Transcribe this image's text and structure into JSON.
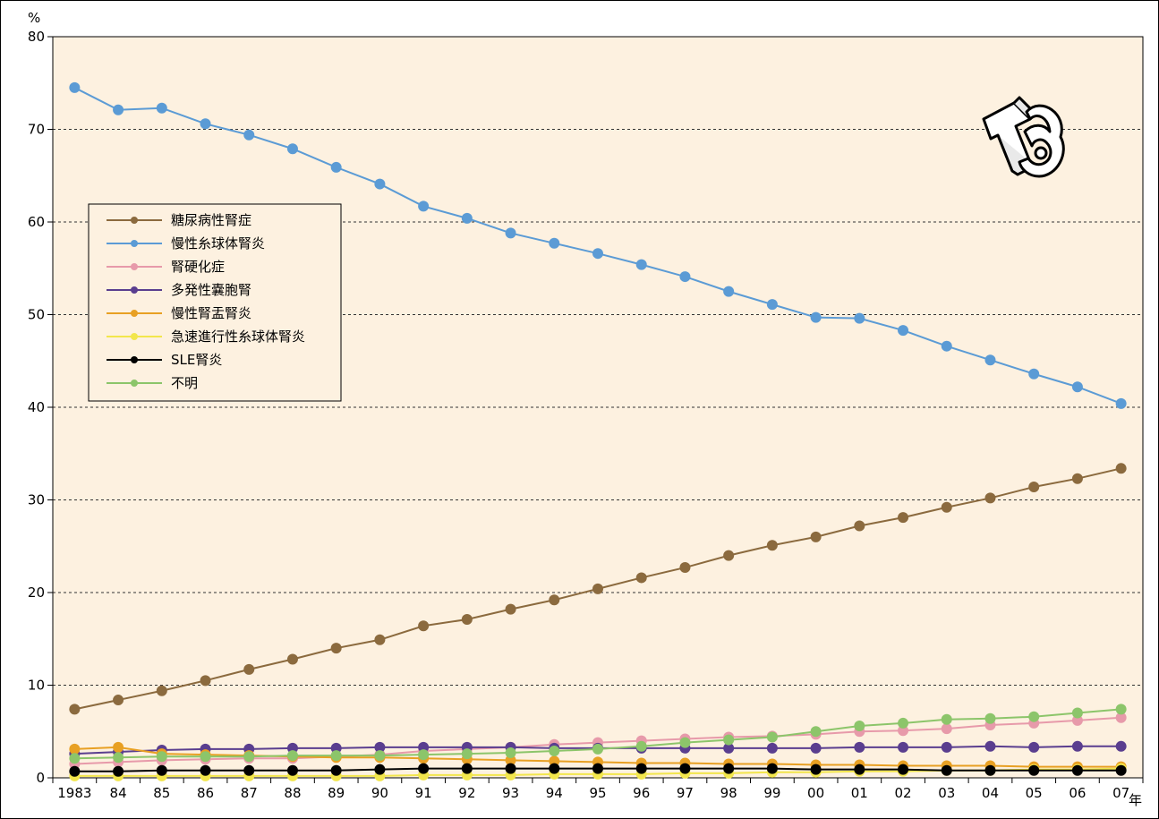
{
  "chart_data": {
    "type": "line",
    "y_unit": "%",
    "x_unit": "年",
    "categories": [
      "1983",
      "84",
      "85",
      "86",
      "87",
      "88",
      "89",
      "90",
      "91",
      "92",
      "93",
      "94",
      "95",
      "96",
      "97",
      "98",
      "99",
      "00",
      "01",
      "02",
      "03",
      "04",
      "05",
      "06",
      "07"
    ],
    "ylim": [
      0,
      80
    ],
    "yticks": [
      0,
      10,
      20,
      30,
      40,
      50,
      60,
      70,
      80
    ],
    "grid": "horizontal-dashed",
    "legend_position": "left",
    "series": [
      {
        "name": "糖尿病性腎症",
        "color": "#8B6A3E",
        "values": [
          7.4,
          8.4,
          9.4,
          10.5,
          11.7,
          12.8,
          14.0,
          14.9,
          16.4,
          17.1,
          18.2,
          19.2,
          20.4,
          21.6,
          22.7,
          24.0,
          25.1,
          26.0,
          27.2,
          28.1,
          29.2,
          30.2,
          31.4,
          32.3,
          33.4
        ]
      },
      {
        "name": "慢性糸球体腎炎",
        "color": "#5B9BD5",
        "values": [
          74.5,
          72.1,
          72.3,
          70.6,
          69.4,
          67.9,
          65.9,
          64.1,
          61.7,
          60.4,
          58.8,
          57.7,
          56.6,
          55.4,
          54.1,
          52.5,
          51.1,
          49.7,
          49.6,
          48.3,
          46.6,
          45.1,
          43.6,
          42.2,
          40.4
        ]
      },
      {
        "name": "腎硬化症",
        "color": "#E79AAA",
        "values": [
          1.5,
          1.7,
          1.9,
          2.0,
          2.1,
          2.1,
          2.3,
          2.5,
          2.9,
          3.1,
          3.3,
          3.6,
          3.8,
          4.0,
          4.2,
          4.4,
          4.5,
          4.7,
          5.0,
          5.1,
          5.3,
          5.7,
          5.9,
          6.2,
          6.5
        ]
      },
      {
        "name": "多発性嚢胞腎",
        "color": "#5A3E8F",
        "values": [
          2.6,
          2.8,
          3.0,
          3.1,
          3.1,
          3.2,
          3.2,
          3.3,
          3.3,
          3.3,
          3.3,
          3.2,
          3.2,
          3.2,
          3.2,
          3.2,
          3.2,
          3.2,
          3.3,
          3.3,
          3.3,
          3.4,
          3.3,
          3.4,
          3.4
        ]
      },
      {
        "name": "慢性腎盂腎炎",
        "color": "#E8A023",
        "values": [
          3.1,
          3.3,
          2.6,
          2.5,
          2.4,
          2.3,
          2.2,
          2.2,
          2.1,
          2.0,
          1.9,
          1.8,
          1.7,
          1.6,
          1.6,
          1.5,
          1.5,
          1.4,
          1.4,
          1.3,
          1.3,
          1.3,
          1.2,
          1.2,
          1.2
        ]
      },
      {
        "name": "急速進行性糸球体腎炎",
        "color": "#F2E64C",
        "values": [
          0.2,
          0.2,
          0.2,
          0.2,
          0.2,
          0.2,
          0.2,
          0.2,
          0.3,
          0.3,
          0.3,
          0.4,
          0.4,
          0.4,
          0.5,
          0.5,
          0.6,
          0.6,
          0.7,
          0.7,
          0.8,
          0.8,
          0.9,
          0.9,
          1.0
        ]
      },
      {
        "name": "SLE腎炎",
        "color": "#000000",
        "values": [
          0.7,
          0.7,
          0.8,
          0.8,
          0.8,
          0.8,
          0.8,
          0.9,
          1.0,
          1.0,
          1.0,
          1.0,
          1.0,
          1.0,
          1.0,
          1.0,
          1.0,
          0.9,
          0.9,
          0.9,
          0.8,
          0.8,
          0.8,
          0.8,
          0.8
        ]
      },
      {
        "name": "不明",
        "color": "#8CC56A",
        "values": [
          2.1,
          2.2,
          2.3,
          2.3,
          2.3,
          2.4,
          2.4,
          2.4,
          2.5,
          2.6,
          2.7,
          2.9,
          3.1,
          3.4,
          3.8,
          4.1,
          4.4,
          5.0,
          5.6,
          5.9,
          6.3,
          6.4,
          6.6,
          7.0,
          7.4
        ]
      }
    ]
  }
}
